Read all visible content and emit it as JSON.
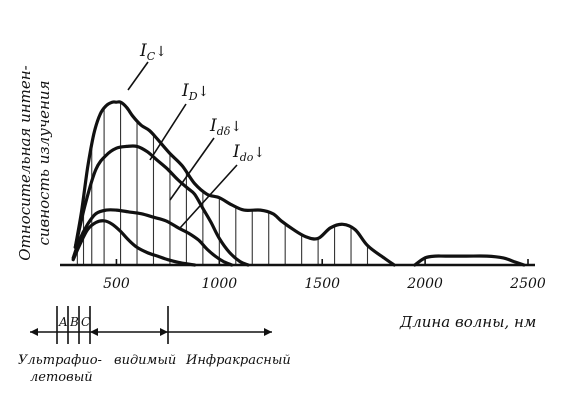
{
  "chart_data": {
    "type": "line",
    "xlabel": "Длина волны, нм",
    "ylabel_line1": "Относительная интен-",
    "ylabel_line2": "сивность излучения",
    "xlim": [
      250,
      2500
    ],
    "ylim": [
      0,
      1.0
    ],
    "x_ticks": [
      500,
      1000,
      1500,
      2000,
      2500
    ],
    "x_tick_labels": [
      "500",
      "1000",
      "1500",
      "2000",
      "2500"
    ],
    "grid": false,
    "series": [
      {
        "name": "IC",
        "label_main": "I",
        "label_sub": "C",
        "x": [
          300,
          330,
          360,
          390,
          420,
          450,
          480,
          500,
          520,
          550,
          580,
          620,
          660,
          700,
          760,
          820,
          880,
          940,
          1000,
          1060,
          1120,
          1200,
          1260,
          1300,
          1360,
          1420,
          1480,
          1540,
          1600,
          1660,
          1720,
          1800,
          1850
        ],
        "y": [
          0.1,
          0.3,
          0.55,
          0.74,
          0.85,
          0.9,
          0.92,
          0.92,
          0.92,
          0.89,
          0.84,
          0.79,
          0.76,
          0.71,
          0.63,
          0.56,
          0.46,
          0.4,
          0.38,
          0.34,
          0.31,
          0.31,
          0.29,
          0.25,
          0.2,
          0.16,
          0.15,
          0.21,
          0.23,
          0.2,
          0.11,
          0.04,
          0.0
        ],
        "secondary": {
          "x": [
            1950,
            2000,
            2050,
            2100,
            2200,
            2300,
            2380,
            2430,
            2480
          ],
          "y": [
            0.0,
            0.04,
            0.05,
            0.05,
            0.05,
            0.05,
            0.04,
            0.02,
            0.0
          ]
        }
      },
      {
        "name": "ID",
        "label_main": "I",
        "label_sub": "D",
        "x": [
          300,
          350,
          400,
          450,
          500,
          550,
          600,
          650,
          700,
          750,
          800,
          850,
          880,
          920,
          960,
          1000,
          1050,
          1100,
          1140
        ],
        "y": [
          0.1,
          0.35,
          0.54,
          0.62,
          0.66,
          0.67,
          0.67,
          0.64,
          0.59,
          0.54,
          0.48,
          0.43,
          0.4,
          0.32,
          0.24,
          0.15,
          0.07,
          0.02,
          0.0
        ]
      },
      {
        "name": "Idδ",
        "label_main": "I",
        "label_sub": "dδ",
        "x": [
          290,
          320,
          360,
          400,
          450,
          500,
          560,
          620,
          680,
          740,
          800,
          850,
          900,
          940,
          980,
          1020,
          1060
        ],
        "y": [
          0.04,
          0.14,
          0.23,
          0.29,
          0.31,
          0.31,
          0.3,
          0.29,
          0.27,
          0.25,
          0.21,
          0.18,
          0.14,
          0.09,
          0.05,
          0.02,
          0.0
        ]
      },
      {
        "name": "Ido",
        "label_main": "I",
        "label_sub": "do",
        "x": [
          290,
          320,
          360,
          400,
          440,
          480,
          520,
          560,
          600,
          650,
          700,
          750,
          800,
          850,
          880
        ],
        "y": [
          0.03,
          0.11,
          0.2,
          0.24,
          0.25,
          0.23,
          0.19,
          0.14,
          0.1,
          0.07,
          0.05,
          0.03,
          0.015,
          0.005,
          0.0
        ]
      }
    ],
    "hatch_lines_x": [
      310,
      340,
      380,
      440,
      520,
      600,
      680,
      760,
      840,
      920,
      1000,
      1080,
      1160,
      1240,
      1320,
      1400,
      1480,
      1560,
      1640,
      1720
    ],
    "bands": {
      "uv_letters": [
        "A",
        "B",
        "C"
      ],
      "uv_label_line1": "Ультрафио-",
      "uv_label_line2": "летовый",
      "visible_label": "видимый",
      "infrared_label": "Инфракрасный"
    }
  }
}
